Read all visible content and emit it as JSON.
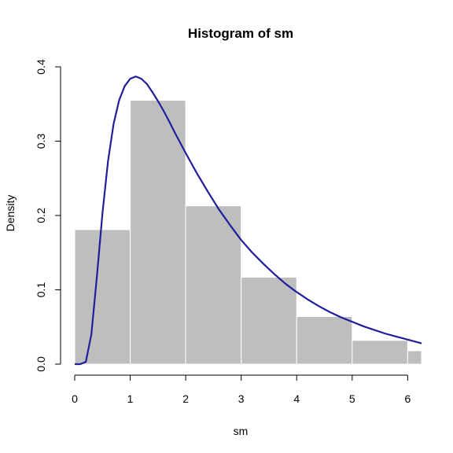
{
  "chart_data": {
    "type": "histogram",
    "title": "Histogram of sm",
    "xlabel": "sm",
    "ylabel": "Density",
    "xlim": [
      0,
      6.25
    ],
    "ylim": [
      0,
      0.4
    ],
    "x_ticks": [
      "0",
      "1",
      "2",
      "3",
      "4",
      "5",
      "6"
    ],
    "y_ticks": [
      "0.0",
      "0.1",
      "0.2",
      "0.3",
      "0.4"
    ],
    "bins": [
      {
        "x0": 0,
        "x1": 1,
        "density": 0.181
      },
      {
        "x0": 1,
        "x1": 2,
        "density": 0.355
      },
      {
        "x0": 2,
        "x1": 3,
        "density": 0.213
      },
      {
        "x0": 3,
        "x1": 4,
        "density": 0.117
      },
      {
        "x0": 4,
        "x1": 5,
        "density": 0.064
      },
      {
        "x0": 5,
        "x1": 6,
        "density": 0.032
      },
      {
        "x0": 6,
        "x1": 7,
        "density": 0.018
      }
    ],
    "bar_color": "#bebebe",
    "bar_border_color": "#ffffff",
    "curve": {
      "color": "#1f1f9c",
      "points": [
        [
          0.0,
          0.0
        ],
        [
          0.1,
          0.0
        ],
        [
          0.2,
          0.003
        ],
        [
          0.3,
          0.04
        ],
        [
          0.4,
          0.118
        ],
        [
          0.5,
          0.203
        ],
        [
          0.6,
          0.273
        ],
        [
          0.7,
          0.323
        ],
        [
          0.8,
          0.355
        ],
        [
          0.9,
          0.374
        ],
        [
          1.0,
          0.384
        ],
        [
          1.1,
          0.387
        ],
        [
          1.2,
          0.384
        ],
        [
          1.3,
          0.377
        ],
        [
          1.4,
          0.366
        ],
        [
          1.5,
          0.354
        ],
        [
          1.6,
          0.341
        ],
        [
          1.7,
          0.327
        ],
        [
          1.8,
          0.312
        ],
        [
          1.9,
          0.298
        ],
        [
          2.0,
          0.284
        ],
        [
          2.2,
          0.257
        ],
        [
          2.4,
          0.232
        ],
        [
          2.6,
          0.208
        ],
        [
          2.8,
          0.187
        ],
        [
          3.0,
          0.167
        ],
        [
          3.2,
          0.15
        ],
        [
          3.4,
          0.135
        ],
        [
          3.6,
          0.121
        ],
        [
          3.8,
          0.108
        ],
        [
          4.0,
          0.097
        ],
        [
          4.2,
          0.087
        ],
        [
          4.4,
          0.078
        ],
        [
          4.6,
          0.07
        ],
        [
          4.8,
          0.063
        ],
        [
          5.0,
          0.057
        ],
        [
          5.2,
          0.051
        ],
        [
          5.4,
          0.046
        ],
        [
          5.6,
          0.041
        ],
        [
          5.8,
          0.037
        ],
        [
          6.0,
          0.033
        ],
        [
          6.25,
          0.028
        ]
      ]
    }
  }
}
